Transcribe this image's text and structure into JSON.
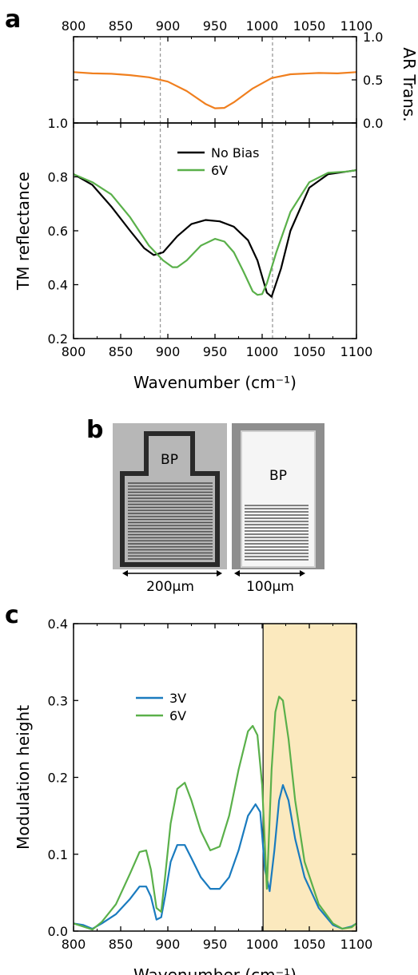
{
  "panels": {
    "a_letter": "a",
    "b_letter": "b",
    "c_letter": "c"
  },
  "micrographs": {
    "left_label": "BP",
    "right_label": "BP",
    "left_scale": "200µm",
    "right_scale": "100µm"
  },
  "chart_data": [
    {
      "id": "a-top",
      "type": "line",
      "title": "",
      "xlabel": "",
      "ylabel": "AR Trans.",
      "xlim": [
        800,
        1100
      ],
      "ylim": [
        0.0,
        1.0
      ],
      "x_ticks": [
        "800",
        "850",
        "900",
        "950",
        "1000",
        "1050",
        "1100"
      ],
      "y_ticks": [
        "0.0",
        "0.5",
        "1.0"
      ],
      "x_axis_position": "top",
      "y_axis_position": "right",
      "colors": [
        "#f07f1e"
      ],
      "vlines": [
        892,
        1011
      ],
      "series": [
        {
          "x": [
            800,
            820,
            840,
            860,
            880,
            900,
            920,
            940,
            950,
            960,
            970,
            990,
            1010,
            1030,
            1060,
            1080,
            1100
          ],
          "y": [
            0.59,
            0.575,
            0.57,
            0.555,
            0.53,
            0.48,
            0.37,
            0.22,
            0.17,
            0.175,
            0.24,
            0.4,
            0.52,
            0.565,
            0.58,
            0.575,
            0.59
          ]
        }
      ]
    },
    {
      "id": "a-bottom",
      "type": "line",
      "title": "",
      "xlabel": "Wavenumber (cm⁻¹)",
      "ylabel": "TM reflectance",
      "xlim": [
        800,
        1100
      ],
      "ylim": [
        0.2,
        1.0
      ],
      "x_ticks": [
        "800",
        "850",
        "900",
        "950",
        "1000",
        "1050",
        "1100"
      ],
      "y_ticks": [
        "0.2",
        "0.4",
        "0.6",
        "0.8",
        "1.0"
      ],
      "legend": "top-center",
      "colors": [
        "#000000",
        "#5ab04a"
      ],
      "vlines": [
        892,
        1011
      ],
      "series": [
        {
          "name": "No Bias",
          "x": [
            800,
            820,
            840,
            860,
            875,
            885,
            895,
            910,
            925,
            940,
            955,
            970,
            985,
            995,
            1000,
            1005,
            1010,
            1020,
            1030,
            1050,
            1070,
            1090,
            1100
          ],
          "y": [
            0.81,
            0.77,
            0.69,
            0.6,
            0.535,
            0.51,
            0.52,
            0.58,
            0.625,
            0.64,
            0.635,
            0.615,
            0.565,
            0.49,
            0.43,
            0.37,
            0.355,
            0.46,
            0.6,
            0.76,
            0.81,
            0.82,
            0.825
          ]
        },
        {
          "name": "6V",
          "x": [
            800,
            820,
            840,
            860,
            880,
            895,
            905,
            910,
            920,
            935,
            950,
            960,
            970,
            980,
            990,
            995,
            1000,
            1005,
            1015,
            1030,
            1050,
            1070,
            1090,
            1100
          ],
          "y": [
            0.81,
            0.78,
            0.735,
            0.65,
            0.545,
            0.49,
            0.465,
            0.465,
            0.49,
            0.545,
            0.57,
            0.56,
            0.52,
            0.45,
            0.375,
            0.362,
            0.365,
            0.405,
            0.52,
            0.67,
            0.78,
            0.815,
            0.82,
            0.825
          ]
        }
      ]
    },
    {
      "id": "c",
      "type": "line",
      "title": "",
      "xlabel": "Wavenumber (cm⁻¹)",
      "ylabel": "Modulation height",
      "xlim": [
        800,
        1100
      ],
      "ylim": [
        0.0,
        0.4
      ],
      "x_ticks": [
        "800",
        "850",
        "900",
        "950",
        "1000",
        "1050",
        "1100"
      ],
      "y_ticks": [
        "0.0",
        "0.1",
        "0.2",
        "0.3",
        "0.4"
      ],
      "legend": "upper-left",
      "colors": [
        "#1a7bbf",
        "#5ab04a",
        "#fbe9be",
        "#333333"
      ],
      "highlight_xrange": [
        1001,
        1100
      ],
      "series": [
        {
          "name": "3V",
          "x": [
            800,
            810,
            820,
            830,
            845,
            860,
            870,
            877,
            882,
            888,
            893,
            897,
            903,
            910,
            918,
            925,
            935,
            945,
            955,
            965,
            975,
            985,
            993,
            998,
            1003,
            1008,
            1013,
            1018,
            1022,
            1028,
            1035,
            1045,
            1060,
            1075,
            1085,
            1095,
            1100
          ],
          "y": [
            0.01,
            0.008,
            0.003,
            0.01,
            0.022,
            0.042,
            0.058,
            0.058,
            0.045,
            0.015,
            0.018,
            0.045,
            0.09,
            0.112,
            0.112,
            0.095,
            0.07,
            0.055,
            0.055,
            0.07,
            0.105,
            0.15,
            0.165,
            0.155,
            0.08,
            0.052,
            0.105,
            0.17,
            0.19,
            0.17,
            0.12,
            0.07,
            0.03,
            0.008,
            0.003,
            0.006,
            0.01
          ]
        },
        {
          "name": "6V",
          "x": [
            800,
            810,
            820,
            830,
            845,
            860,
            870,
            877,
            882,
            888,
            893,
            897,
            903,
            910,
            918,
            925,
            935,
            945,
            955,
            965,
            975,
            985,
            990,
            995,
            1000,
            1005,
            1010,
            1014,
            1018,
            1022,
            1028,
            1035,
            1045,
            1060,
            1075,
            1085,
            1095,
            1100
          ],
          "y": [
            0.01,
            0.006,
            0.002,
            0.012,
            0.035,
            0.075,
            0.103,
            0.105,
            0.08,
            0.03,
            0.025,
            0.07,
            0.14,
            0.185,
            0.193,
            0.17,
            0.13,
            0.105,
            0.11,
            0.15,
            0.21,
            0.26,
            0.267,
            0.255,
            0.19,
            0.055,
            0.21,
            0.285,
            0.305,
            0.3,
            0.25,
            0.17,
            0.09,
            0.035,
            0.01,
            0.003,
            0.005,
            0.01
          ]
        }
      ]
    }
  ]
}
